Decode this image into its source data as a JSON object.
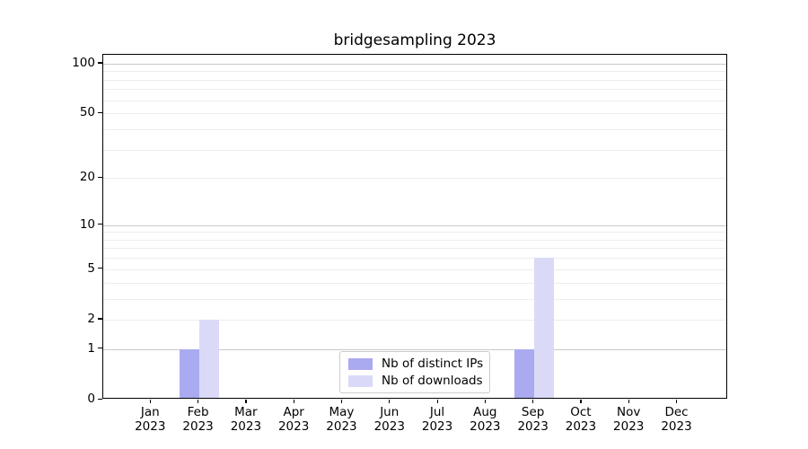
{
  "title": "bridgesampling 2023",
  "chart_data": {
    "type": "bar",
    "title": "bridgesampling 2023",
    "xlabel": "",
    "ylabel": "",
    "categories": [
      "Jan 2023",
      "Feb 2023",
      "Mar 2023",
      "Apr 2023",
      "May 2023",
      "Jun 2023",
      "Jul 2023",
      "Aug 2023",
      "Sep 2023",
      "Oct 2023",
      "Nov 2023",
      "Dec 2023"
    ],
    "series": [
      {
        "name": "Nb of distinct IPs",
        "color": "#aaaaf0",
        "values": [
          0,
          1,
          0,
          0,
          0,
          0,
          0,
          0,
          1,
          0,
          0,
          0
        ]
      },
      {
        "name": "Nb of downloads",
        "color": "#dadaf8",
        "values": [
          0,
          2,
          0,
          0,
          0,
          0,
          0,
          0,
          6,
          0,
          0,
          0
        ]
      }
    ],
    "yscale": "log1p",
    "ylim": [
      0,
      113
    ],
    "yticks": [
      0,
      1,
      2,
      5,
      10,
      20,
      50,
      100
    ],
    "grid_major": [
      1,
      10,
      100
    ],
    "grid_minor": [
      2,
      3,
      4,
      5,
      6,
      7,
      8,
      9,
      20,
      30,
      40,
      50,
      60,
      70,
      80,
      90
    ],
    "grid": "on",
    "legend_position": "lower center"
  },
  "colors": {
    "background": "#ffffff",
    "axis": "#000000",
    "grid_major": "#c9c9c9",
    "grid_minor": "#ededed",
    "bar_distinct_ips": "#aaaaf0",
    "bar_downloads": "#dadaf8",
    "legend_border": "#cccccc"
  }
}
